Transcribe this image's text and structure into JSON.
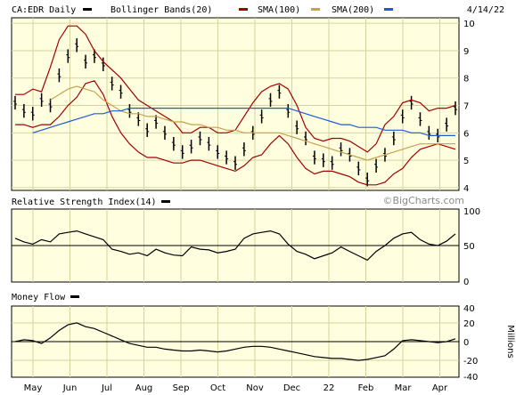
{
  "header": {
    "symbol_label": "CA:EDR Daily",
    "bb_label": "Bollinger Bands(20)",
    "sma100_label": "SMA(100)",
    "sma200_label": "SMA(200)",
    "date_label": "4/14/22"
  },
  "watermark": "©BigCharts.com",
  "colors": {
    "background": "#ffffff",
    "panel": "#ffffe0",
    "grid": "#d3d3a0",
    "price": "#000000",
    "bollinger": "#a00000",
    "sma100": "#c8a050",
    "sma200": "#1e5ad2"
  },
  "months": [
    "May",
    "Jun",
    "Jul",
    "Aug",
    "Sep",
    "Oct",
    "Nov",
    "Dec",
    "22",
    "Feb",
    "Mar",
    "Apr"
  ],
  "chart_data": [
    {
      "type": "line",
      "name": "price",
      "title": "CA:EDR Daily",
      "ylim": [
        3.9,
        10.2
      ],
      "yticks": [
        4,
        5,
        6,
        7,
        8,
        9,
        10
      ],
      "tick_labels": [
        "4",
        "5",
        "6",
        "7",
        "8",
        "9",
        "10"
      ],
      "x_labels": [
        "May",
        "Jun",
        "Jul",
        "Aug",
        "Sep",
        "Oct",
        "Nov",
        "Dec",
        "22",
        "Feb",
        "Mar",
        "Apr"
      ],
      "series": [
        {
          "name": "CA:EDR Daily",
          "values": [
            7.1,
            6.8,
            6.7,
            7.2,
            7.0,
            8.1,
            8.8,
            9.2,
            8.6,
            8.8,
            8.5,
            7.8,
            7.5,
            6.8,
            6.5,
            6.1,
            6.4,
            6.0,
            5.6,
            5.3,
            5.5,
            5.8,
            5.6,
            5.3,
            5.1,
            4.9,
            5.4,
            6.0,
            6.6,
            7.2,
            7.5,
            6.8,
            6.2,
            5.8,
            5.1,
            5.0,
            4.9,
            5.4,
            5.2,
            4.7,
            4.3,
            4.8,
            5.2,
            5.8,
            6.6,
            7.1,
            6.5,
            6.0,
            5.9,
            6.3,
            6.9
          ]
        },
        {
          "name": "Bollinger Bands(20) upper",
          "values": [
            7.4,
            7.4,
            7.6,
            7.5,
            8.4,
            9.4,
            9.9,
            9.9,
            9.6,
            9.0,
            8.6,
            8.3,
            8.0,
            7.6,
            7.2,
            7.0,
            6.8,
            6.6,
            6.4,
            6.0,
            6.0,
            6.2,
            6.2,
            6.0,
            6.0,
            6.1,
            6.6,
            7.1,
            7.5,
            7.7,
            7.8,
            7.6,
            7.0,
            6.2,
            5.8,
            5.7,
            5.8,
            5.8,
            5.7,
            5.5,
            5.3,
            5.6,
            6.3,
            6.6,
            7.1,
            7.2,
            7.1,
            6.8,
            6.9,
            6.9,
            7.0
          ]
        },
        {
          "name": "Bollinger Bands(20) lower",
          "values": [
            6.3,
            6.3,
            6.2,
            6.3,
            6.3,
            6.6,
            7.0,
            7.3,
            7.8,
            7.9,
            7.4,
            6.6,
            6.0,
            5.6,
            5.3,
            5.1,
            5.1,
            5.0,
            4.9,
            4.9,
            5.0,
            5.0,
            4.9,
            4.8,
            4.7,
            4.6,
            4.8,
            5.1,
            5.2,
            5.6,
            5.9,
            5.6,
            5.1,
            4.7,
            4.5,
            4.6,
            4.6,
            4.5,
            4.4,
            4.2,
            4.1,
            4.1,
            4.2,
            4.5,
            4.7,
            5.1,
            5.4,
            5.5,
            5.6,
            5.5,
            5.4
          ]
        },
        {
          "name": "SMA(100)",
          "values": [
            null,
            null,
            null,
            null,
            7.2,
            7.4,
            7.6,
            7.7,
            7.6,
            7.5,
            7.2,
            7.0,
            6.8,
            6.7,
            6.7,
            6.6,
            6.6,
            6.5,
            6.4,
            6.4,
            6.3,
            6.3,
            6.2,
            6.2,
            6.1,
            6.1,
            6.0,
            6.0,
            6.0,
            6.0,
            6.0,
            5.9,
            5.8,
            5.7,
            5.6,
            5.5,
            5.4,
            5.3,
            5.2,
            5.1,
            5.0,
            5.1,
            5.2,
            5.3,
            5.4,
            5.5,
            5.6,
            5.6,
            5.6,
            5.6,
            5.6
          ]
        },
        {
          "name": "SMA(200)",
          "values": [
            null,
            null,
            6.0,
            6.1,
            6.2,
            6.3,
            6.4,
            6.5,
            6.6,
            6.7,
            6.7,
            6.8,
            6.8,
            6.9,
            6.9,
            6.9,
            6.9,
            6.9,
            6.9,
            6.9,
            6.9,
            6.9,
            6.9,
            6.9,
            6.9,
            6.9,
            6.9,
            6.9,
            6.9,
            6.9,
            6.9,
            6.9,
            6.8,
            6.7,
            6.6,
            6.5,
            6.4,
            6.3,
            6.3,
            6.2,
            6.2,
            6.2,
            6.1,
            6.1,
            6.1,
            6.0,
            6.0,
            5.9,
            5.9,
            5.9,
            5.9
          ]
        }
      ]
    },
    {
      "type": "line",
      "name": "rsi",
      "title": "Relative Strength Index(14)",
      "ylim": [
        0,
        100
      ],
      "yticks": [
        0,
        50,
        100
      ],
      "tick_labels": [
        "0",
        "50",
        "100"
      ],
      "reference_line": 50,
      "series": [
        {
          "name": "Relative Strength Index(14)",
          "values": [
            60,
            55,
            52,
            58,
            55,
            66,
            68,
            70,
            66,
            62,
            58,
            45,
            42,
            38,
            40,
            36,
            45,
            40,
            37,
            36,
            48,
            45,
            44,
            40,
            42,
            45,
            60,
            66,
            68,
            70,
            66,
            52,
            42,
            38,
            32,
            36,
            40,
            48,
            42,
            36,
            30,
            42,
            50,
            60,
            66,
            68,
            58,
            52,
            50,
            56,
            66
          ]
        }
      ]
    },
    {
      "type": "line",
      "name": "money-flow",
      "title": "Money Flow",
      "ylabel": "Millions",
      "ylim": [
        -38,
        38
      ],
      "yticks": [
        -40,
        -20,
        0,
        20,
        40
      ],
      "tick_labels": [
        "-40",
        "-20",
        "0",
        "20",
        "40"
      ],
      "series": [
        {
          "name": "Money Flow",
          "values": [
            0,
            2,
            1,
            -2,
            4,
            12,
            18,
            20,
            16,
            14,
            10,
            6,
            2,
            -2,
            -4,
            -6,
            -6,
            -8,
            -9,
            -10,
            -10,
            -9,
            -10,
            -11,
            -10,
            -8,
            -6,
            -5,
            -5,
            -6,
            -8,
            -10,
            -12,
            -14,
            -16,
            -17,
            -18,
            -18,
            -19,
            -20,
            -19,
            -17,
            -15,
            -8,
            1,
            2,
            1,
            0,
            -1,
            0,
            3
          ]
        }
      ]
    }
  ]
}
